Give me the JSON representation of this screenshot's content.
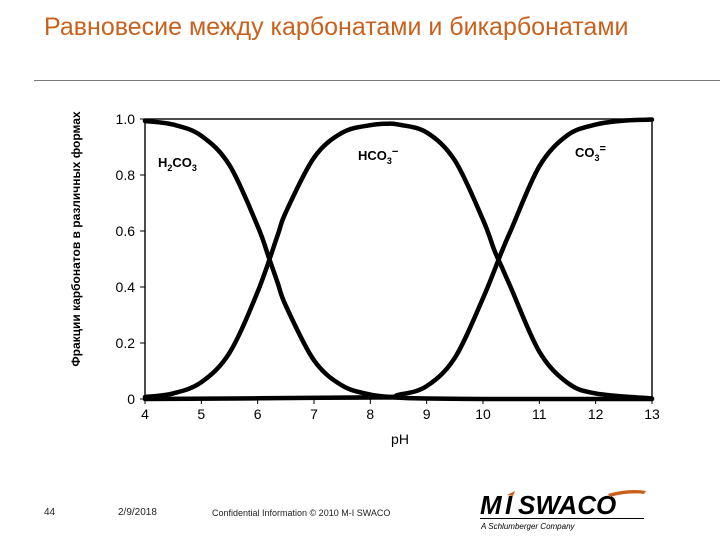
{
  "slide": {
    "title": "Равновесие между карбонатами и бикарбонатами",
    "footer": {
      "page_number": "44",
      "date": "2/9/2018",
      "confidential": "Confidential Information  © 2010 M-I SWACO"
    },
    "logo": {
      "brand": "MiSWACO",
      "tagline": "A Schlumberger Company",
      "color": "#000000",
      "accent": "#c8611d"
    },
    "title_color": "#c8611d"
  },
  "chart_data": {
    "type": "line",
    "title": "",
    "xlabel": "pH",
    "ylabel": "Фракции карбонатов в различных формах",
    "xlim": [
      4,
      13
    ],
    "ylim": [
      0,
      1.0
    ],
    "x_ticks": [
      "4",
      "5",
      "6",
      "7",
      "8",
      "9",
      "10",
      "11",
      "12",
      "13"
    ],
    "y_ticks": [
      "0",
      "0.2",
      "0.4",
      "0.6",
      "0.8",
      "1.0"
    ],
    "grid": false,
    "series": [
      {
        "name": "H2CO3",
        "label_main": "H",
        "label_sub": "2",
        "label_rest": "CO",
        "label_sub2": "3",
        "label_sup": "",
        "x": [
          4,
          4.5,
          5,
          5.5,
          6,
          6.2,
          6.35,
          6.5,
          7,
          7.5,
          8,
          8.5,
          9,
          10,
          11,
          12,
          13
        ],
        "y": [
          0.993,
          0.98,
          0.94,
          0.835,
          0.617,
          0.504,
          0.418,
          0.333,
          0.138,
          0.048,
          0.016,
          0.005,
          0.002,
          0.0,
          0.0,
          0.0,
          0.0
        ]
      },
      {
        "name": "HCO3−",
        "label_main": "",
        "label_sub": "",
        "label_rest": "HCO",
        "label_sub2": "3",
        "label_sup": "−",
        "x": [
          4,
          4.5,
          5,
          5.5,
          6,
          6.35,
          6.5,
          7,
          7.5,
          8,
          8.3,
          8.5,
          9,
          9.5,
          10,
          10.2,
          10.33,
          10.5,
          11,
          11.5,
          12,
          13
        ],
        "y": [
          0.007,
          0.02,
          0.06,
          0.165,
          0.383,
          0.582,
          0.667,
          0.862,
          0.951,
          0.978,
          0.983,
          0.98,
          0.952,
          0.852,
          0.64,
          0.532,
          0.473,
          0.395,
          0.169,
          0.058,
          0.02,
          0.002
        ]
      },
      {
        "name": "CO3=",
        "label_main": "",
        "label_sub": "",
        "label_rest": "CO",
        "label_sub2": "3",
        "label_sup": "=",
        "x": [
          4,
          8,
          8.5,
          9,
          9.5,
          10,
          10.33,
          10.5,
          11,
          11.5,
          12,
          12.5,
          13
        ],
        "y": [
          0.0,
          0.006,
          0.015,
          0.046,
          0.147,
          0.36,
          0.525,
          0.605,
          0.831,
          0.942,
          0.98,
          0.994,
          0.998
        ]
      }
    ]
  }
}
